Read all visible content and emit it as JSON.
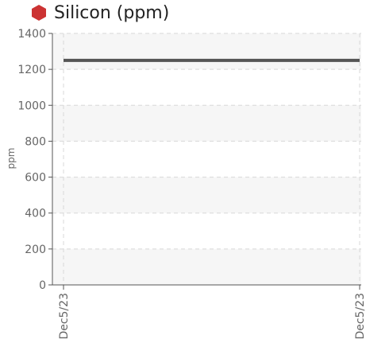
{
  "chart_data": {
    "type": "line",
    "title": "Silicon (ppm)",
    "ylabel": "ppm",
    "ylim": [
      0,
      1400
    ],
    "yticks": [
      0,
      200,
      400,
      600,
      800,
      1000,
      1200,
      1400
    ],
    "categories": [
      "Dec5/23",
      "Dec5/23"
    ],
    "series": [
      {
        "values": [
          1250,
          1250
        ],
        "color": "#555555"
      }
    ],
    "grid": true
  },
  "icon": {
    "name": "hexagon-icon",
    "color": "#cc3333"
  }
}
